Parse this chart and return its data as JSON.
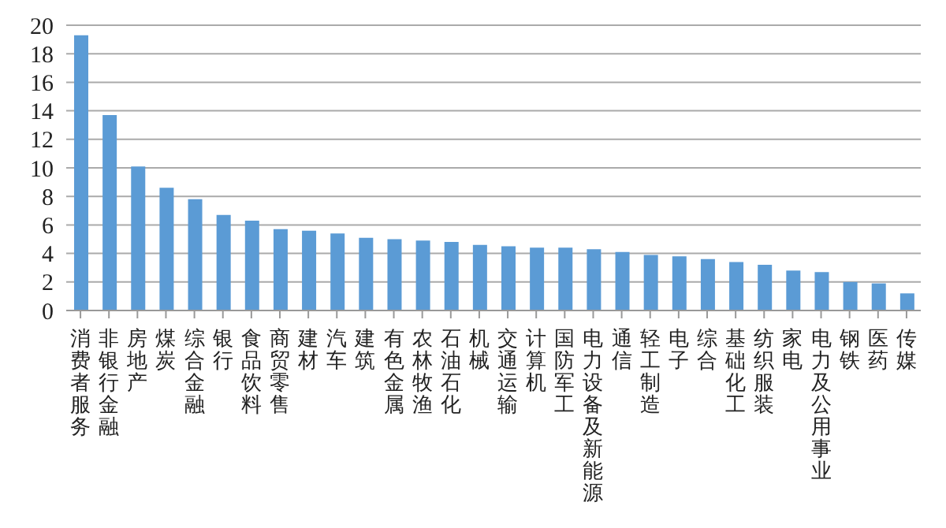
{
  "chart_data": {
    "type": "bar",
    "categories": [
      "消费者服务",
      "非银行金融",
      "房地产",
      "煤炭",
      "综合金融",
      "银行",
      "食品饮料",
      "商贸零售",
      "建材",
      "汽车",
      "建筑",
      "有色金属",
      "农林牧渔",
      "石油石化",
      "机械",
      "交通运输",
      "计算机",
      "国防军工",
      "电力设备及新能源",
      "通信",
      "轻工制造",
      "电子",
      "综合",
      "基础化工",
      "纺织服装",
      "家电",
      "电力及公用事业",
      "钢铁",
      "医药",
      "传媒"
    ],
    "values": [
      19.3,
      13.7,
      10.1,
      8.6,
      7.8,
      6.7,
      6.3,
      5.7,
      5.6,
      5.4,
      5.1,
      5.0,
      4.9,
      4.8,
      4.6,
      4.5,
      4.4,
      4.4,
      4.3,
      4.1,
      3.9,
      3.8,
      3.6,
      3.4,
      3.2,
      2.8,
      2.7,
      2.0,
      1.9,
      1.2
    ],
    "color": "#5b9bd5",
    "ylim": [
      0,
      20
    ],
    "yticks": [
      0,
      2,
      4,
      6,
      8,
      10,
      12,
      14,
      16,
      18,
      20
    ],
    "grid": "y"
  }
}
